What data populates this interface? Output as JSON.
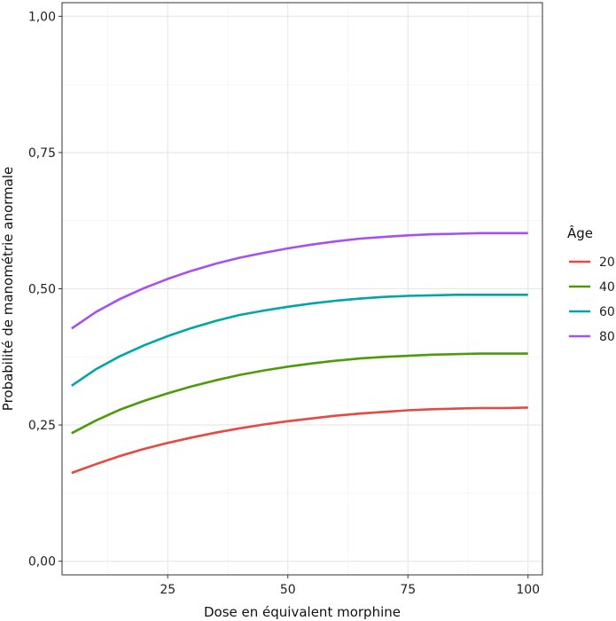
{
  "chart_data": {
    "type": "line",
    "xlabel": "Dose en équivalent morphine",
    "ylabel": "Probabilité de manométrie anormale",
    "xlim": [
      3,
      103
    ],
    "ylim": [
      -0.025,
      1.025
    ],
    "x_ticks": [
      {
        "value": 25,
        "label": "25"
      },
      {
        "value": 50,
        "label": "50"
      },
      {
        "value": 75,
        "label": "75"
      },
      {
        "value": 100,
        "label": "100"
      }
    ],
    "x_minor_ticks": [
      12.5,
      37.5,
      62.5,
      87.5
    ],
    "y_ticks": [
      {
        "value": 0.0,
        "label": "0,00"
      },
      {
        "value": 0.25,
        "label": "0,25"
      },
      {
        "value": 0.5,
        "label": "0,50"
      },
      {
        "value": 0.75,
        "label": "0,75"
      },
      {
        "value": 1.0,
        "label": "1,00"
      }
    ],
    "y_minor_ticks": [
      0.125,
      0.375,
      0.625,
      0.875
    ],
    "grid": true,
    "legend": {
      "title": "Âge",
      "position": "right"
    },
    "x": [
      5,
      10,
      15,
      20,
      25,
      30,
      35,
      40,
      45,
      50,
      55,
      60,
      65,
      70,
      75,
      80,
      85,
      90,
      95,
      100
    ],
    "series": [
      {
        "name": "20",
        "color": "#e5493f",
        "values": [
          0.162,
          0.178,
          0.193,
          0.206,
          0.217,
          0.227,
          0.236,
          0.244,
          0.251,
          0.257,
          0.262,
          0.267,
          0.271,
          0.274,
          0.277,
          0.279,
          0.28,
          0.281,
          0.281,
          0.282
        ]
      },
      {
        "name": "40",
        "color": "#4d9a0b",
        "values": [
          0.235,
          0.258,
          0.278,
          0.294,
          0.308,
          0.321,
          0.332,
          0.342,
          0.35,
          0.357,
          0.363,
          0.368,
          0.372,
          0.375,
          0.377,
          0.379,
          0.38,
          0.381,
          0.381,
          0.381
        ]
      },
      {
        "name": "60",
        "color": "#00a6a6",
        "values": [
          0.322,
          0.352,
          0.376,
          0.396,
          0.413,
          0.428,
          0.441,
          0.452,
          0.46,
          0.467,
          0.473,
          0.478,
          0.482,
          0.485,
          0.487,
          0.488,
          0.489,
          0.489,
          0.489,
          0.489
        ]
      },
      {
        "name": "80",
        "color": "#a84ff0",
        "values": [
          0.427,
          0.457,
          0.481,
          0.501,
          0.518,
          0.533,
          0.546,
          0.557,
          0.566,
          0.574,
          0.581,
          0.587,
          0.592,
          0.595,
          0.598,
          0.6,
          0.601,
          0.602,
          0.602,
          0.602
        ]
      }
    ]
  }
}
